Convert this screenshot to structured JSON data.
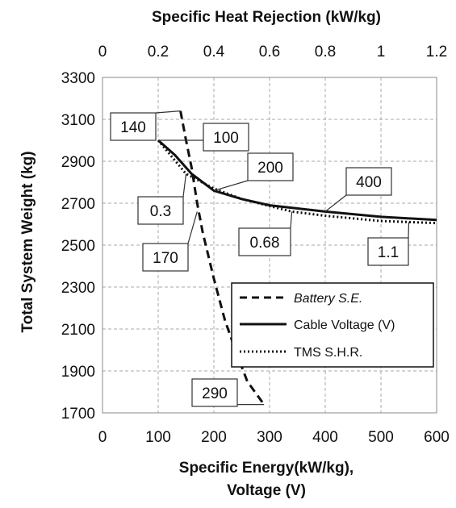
{
  "chart_data": {
    "type": "line",
    "title": "Specific Heat Rejection (kW/kg)",
    "xlabel": "Specific Energy(kW/kg),",
    "xlabel_line2": "Voltage (V)",
    "ylabel": "Total System Weight (kg)",
    "x_bottom_range": [
      0,
      600
    ],
    "x_top_range": [
      0,
      1.2
    ],
    "ylim": [
      1700,
      3300
    ],
    "x_bottom_ticks": [
      "0",
      "100",
      "200",
      "300",
      "400",
      "500",
      "600"
    ],
    "x_top_ticks": [
      "0",
      "0.2",
      "0.4",
      "0.6",
      "0.8",
      "1",
      "1.2"
    ],
    "y_ticks": [
      "1700",
      "1900",
      "2100",
      "2300",
      "2500",
      "2700",
      "2900",
      "3100",
      "3300"
    ],
    "grid": true,
    "legend_position": "bottom-right",
    "series": [
      {
        "name": "Battery S.E.",
        "line_style": "dashed",
        "axis": "bottom",
        "x": [
          140,
          150,
          160,
          170,
          180,
          200,
          220,
          240,
          260,
          290
        ],
        "y": [
          3140,
          3000,
          2870,
          2700,
          2560,
          2340,
          2140,
          1990,
          1850,
          1740
        ]
      },
      {
        "name": "Cable Voltage (V)",
        "line_style": "solid",
        "axis": "bottom",
        "x": [
          100,
          130,
          160,
          200,
          250,
          300,
          400,
          500,
          600
        ],
        "y": [
          3000,
          2930,
          2840,
          2760,
          2720,
          2690,
          2660,
          2635,
          2620
        ]
      },
      {
        "name": "TMS S.H.R.",
        "line_style": "dotted",
        "axis": "top",
        "x": [
          0.2,
          0.3,
          0.4,
          0.5,
          0.68,
          0.8,
          1.0,
          1.1,
          1.2
        ],
        "y": [
          3000,
          2840,
          2770,
          2720,
          2660,
          2640,
          2615,
          2610,
          2605
        ]
      }
    ],
    "annotations": [
      {
        "text": "140",
        "series": 0,
        "x": 140,
        "y": 3140
      },
      {
        "text": "100",
        "series": 1,
        "x": 100,
        "y": 3000
      },
      {
        "text": "200",
        "series": 1,
        "x": 200,
        "y": 2760
      },
      {
        "text": "400",
        "series": 1,
        "x": 400,
        "y": 2660
      },
      {
        "text": "0.3",
        "series": 2,
        "x": 0.3,
        "y": 2840
      },
      {
        "text": "170",
        "series": 0,
        "x": 170,
        "y": 2660
      },
      {
        "text": "0.68",
        "series": 2,
        "x": 0.68,
        "y": 2660
      },
      {
        "text": "1.1",
        "series": 2,
        "x": 1.1,
        "y": 2610
      },
      {
        "text": "290",
        "series": 0,
        "x": 290,
        "y": 1740
      }
    ]
  }
}
